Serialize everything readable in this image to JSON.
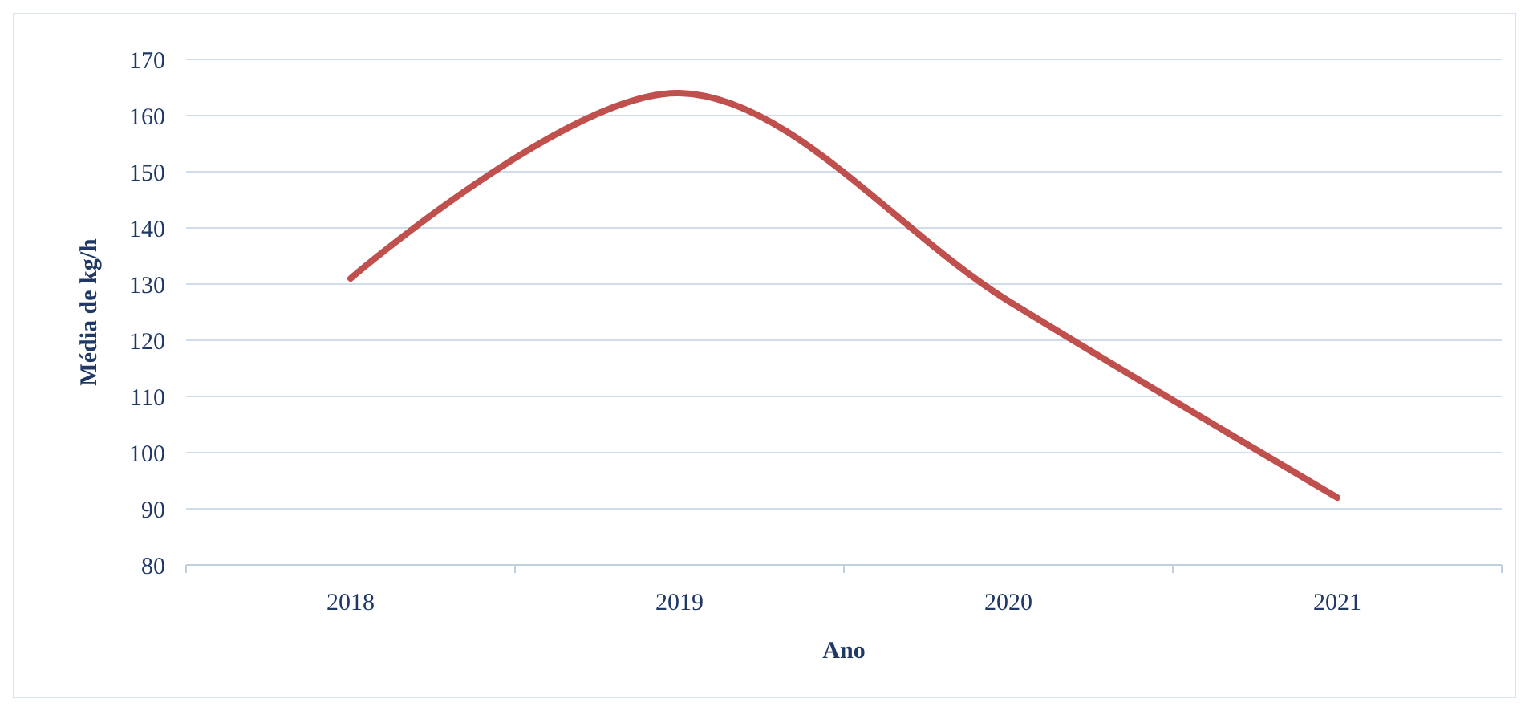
{
  "chart_data": {
    "type": "line",
    "xlabel": "Ano",
    "ylabel": "Média de kg/h",
    "categories": [
      "2018",
      "2019",
      "2020",
      "2021"
    ],
    "series": [
      {
        "color": "#c0504d",
        "values": [
          131,
          164,
          127,
          92
        ]
      }
    ],
    "ylim": [
      80,
      170
    ],
    "yticks": [
      80,
      90,
      100,
      110,
      120,
      130,
      140,
      150,
      160,
      170
    ],
    "grid": "y"
  }
}
